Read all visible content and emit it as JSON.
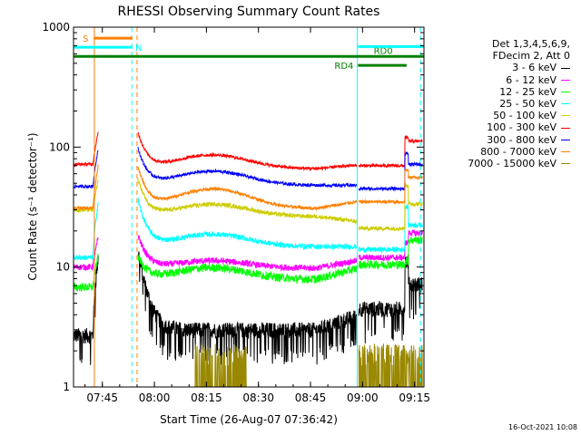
{
  "chart_data": {
    "type": "line",
    "title": "RHESSI Observing Summary Count Rates",
    "xlabel": "Start Time (26-Aug-07 07:36:42)",
    "ylabel": "Count Rate (s⁻¹ detector⁻¹)",
    "yscale": "log",
    "ylim": [
      1,
      1000
    ],
    "xlim_minutes": [
      0,
      101
    ],
    "x_ticks": [
      {
        "label": "07:45",
        "t": 8.3
      },
      {
        "label": "08:00",
        "t": 23.3
      },
      {
        "label": "08:15",
        "t": 38.3
      },
      {
        "label": "08:30",
        "t": 53.3
      },
      {
        "label": "08:45",
        "t": 68.3
      },
      {
        "label": "09:00",
        "t": 83.3
      },
      {
        "label": "09:15",
        "t": 98.3
      }
    ],
    "y_ticks": [
      {
        "label": "1",
        "v": 1
      },
      {
        "label": "10",
        "v": 10
      },
      {
        "label": "100",
        "v": 100
      },
      {
        "label": "1000",
        "v": 1000
      }
    ],
    "legend_header": [
      "Det 1,3,4,5,6,9,",
      "FDecim 2, Att 0"
    ],
    "series": [
      {
        "name": "3 - 6 keV",
        "color": "#000000",
        "pre": 2.7,
        "first": 14,
        "mid": 3.0,
        "dip": 3.0,
        "late": 4.5,
        "noise": 0.15
      },
      {
        "name": "6 - 12 keV",
        "color": "#ff00ff",
        "pre": 10.0,
        "first": 20,
        "mid": 11.0,
        "dip": 9.5,
        "late": 12.0,
        "noise": 0.06
      },
      {
        "name": "12 - 25 keV",
        "color": "#00ff00",
        "pre": 6.8,
        "first": 14,
        "mid": 9.5,
        "dip": 7.5,
        "late": 10.5,
        "noise": 0.08
      },
      {
        "name": "25 - 50 keV",
        "color": "#00ffff",
        "pre": 12.0,
        "first": 40,
        "mid": 18.0,
        "dip": 14.0,
        "late": 14.0,
        "noise": 0.05
      },
      {
        "name": "50 - 100 keV",
        "color": "#cccc00",
        "pre": 30.0,
        "first": 60,
        "mid": 32.0,
        "dip": 25.0,
        "late": 21.0,
        "noise": 0.04
      },
      {
        "name": "100 - 300 keV",
        "color": "#ff0000",
        "pre": 72.0,
        "first": 150,
        "mid": 82.0,
        "dip": 62.0,
        "late": 70.0,
        "noise": 0.03
      },
      {
        "name": "300 - 800 keV",
        "color": "#0000ff",
        "pre": 47.0,
        "first": 110,
        "mid": 60.0,
        "dip": 45.0,
        "late": 45.0,
        "noise": 0.03
      },
      {
        "name": "800 - 7000 keV",
        "color": "#ff8000",
        "pre": 31.0,
        "first": 80,
        "mid": 42.0,
        "dip": 28.0,
        "late": 35.0,
        "noise": 0.03
      },
      {
        "name": "7000 - 15000 keV",
        "color": "#998800",
        "pre": 1.3,
        "first": 1.6,
        "mid": 1.6,
        "dip": 1.6,
        "late": 1.6,
        "noise": 0.3
      }
    ],
    "flag_bars": [
      {
        "label": "S",
        "color": "#ff8000",
        "t0": 5.8,
        "t1": 17.0,
        "v": 810
      },
      {
        "label": "N",
        "color": "#00ffff",
        "t0": 0,
        "t1": 17.0,
        "v": 680
      },
      {
        "label": "RD0",
        "color": "#008000",
        "t0": 0,
        "t1": 101,
        "v": 570
      },
      {
        "label": "RD4",
        "color": "#008000",
        "t0": 82.0,
        "t1": 96.0,
        "v": 480
      },
      {
        "label": "",
        "color": "#00ffff",
        "t0": 82.0,
        "t1": 101,
        "v": 690
      }
    ],
    "vertical_markers": [
      {
        "t": 6.0,
        "color": "#ff8000",
        "style": "solid"
      },
      {
        "t": 16.8,
        "color": "#00ffff",
        "style": "dashed"
      },
      {
        "t": 18.3,
        "color": "#ff8000",
        "style": "dashed"
      },
      {
        "t": 81.8,
        "color": "#00ffff",
        "style": "solid"
      },
      {
        "t": 100.0,
        "color": "#00ffff",
        "style": "dashed"
      }
    ],
    "grid": false,
    "legend_position": "right"
  },
  "timestamp": "16-Oct-2021 10:08"
}
